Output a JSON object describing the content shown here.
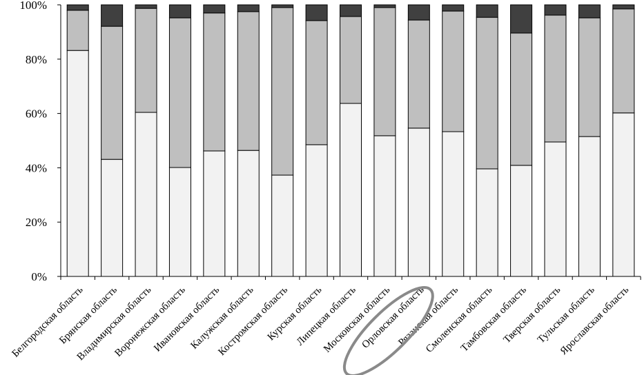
{
  "chart_data": {
    "type": "bar",
    "stacked": true,
    "title": "",
    "xlabel": "",
    "ylabel": "",
    "ylim": [
      0,
      100
    ],
    "yticks": [
      "0%",
      "20%",
      "40%",
      "60%",
      "80%",
      "100%"
    ],
    "categories": [
      "Белгородская область",
      "Брянская область",
      "Владимирская область",
      "Воронежская область",
      "Ивановская область",
      "Калужская область",
      "Костромская область",
      "Курская область",
      "Липецкая область",
      "Московская область",
      "Орловская область",
      "Рязанская область",
      "Смоленская область",
      "Тамбовская область",
      "Тверская область",
      "Тульская область",
      "Ярославская область"
    ],
    "series": [
      {
        "color": "#f2f2f2",
        "values": [
          83.2,
          43.1,
          60.4,
          40.1,
          46.2,
          46.4,
          37.3,
          48.5,
          63.7,
          51.8,
          54.6,
          53.3,
          39.6,
          40.9,
          49.5,
          51.5,
          60.2
        ]
      },
      {
        "color": "#bfbfbf",
        "values": [
          14.8,
          49.0,
          38.3,
          55.1,
          50.8,
          51.1,
          61.7,
          45.7,
          32.0,
          47.2,
          39.8,
          44.4,
          55.8,
          48.7,
          46.7,
          43.7,
          38.3
        ]
      },
      {
        "color": "#404040",
        "values": [
          2.0,
          7.9,
          1.3,
          4.8,
          3.0,
          2.5,
          1.0,
          5.8,
          4.3,
          1.0,
          5.6,
          2.3,
          4.6,
          10.4,
          3.8,
          4.8,
          1.5
        ]
      }
    ],
    "highlighted_category": "Орловская область",
    "grid": false,
    "legend": "none"
  }
}
